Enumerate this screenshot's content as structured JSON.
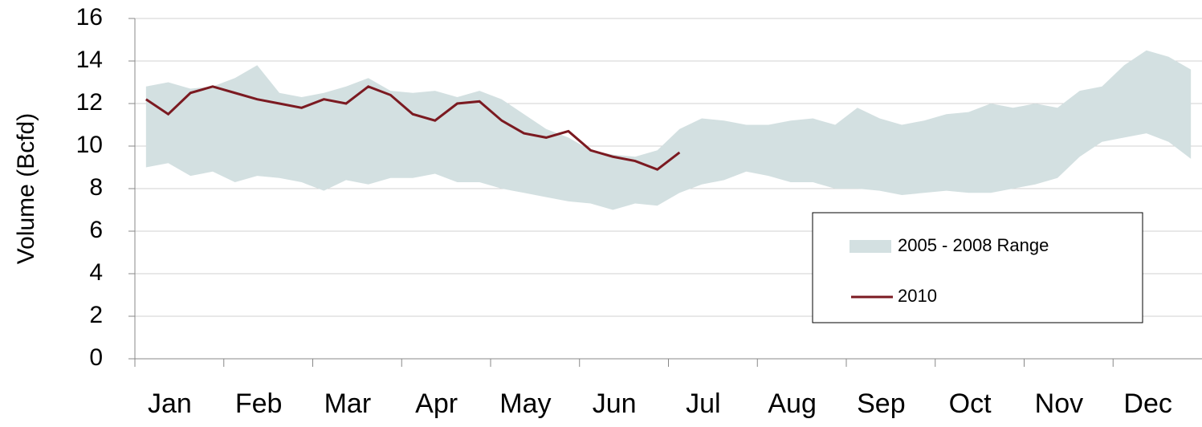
{
  "chart_data": {
    "type": "line",
    "y_label": "Volume (Bcfd)",
    "categories": [
      "Jan",
      null,
      null,
      null,
      "Feb",
      null,
      null,
      null,
      "Mar",
      null,
      null,
      null,
      "Apr",
      null,
      null,
      null,
      "May",
      null,
      null,
      null,
      "Jun",
      null,
      null,
      null,
      "Jul",
      null,
      null,
      null,
      "Aug",
      null,
      null,
      null,
      "Sep",
      null,
      null,
      null,
      "Oct",
      null,
      null,
      null,
      "Nov",
      null,
      null,
      null,
      "Dec",
      null,
      null,
      null
    ],
    "series": [
      {
        "name": "2005 - 2008 Range",
        "kind": "range",
        "color": "#d3e0e1",
        "low": [
          9.0,
          9.2,
          8.6,
          8.8,
          8.3,
          8.6,
          8.5,
          8.3,
          7.9,
          8.4,
          8.2,
          8.5,
          8.5,
          8.7,
          8.3,
          8.3,
          8.0,
          7.8,
          7.6,
          7.4,
          7.3,
          7.0,
          7.3,
          7.2,
          7.8,
          8.2,
          8.4,
          8.8,
          8.6,
          8.3,
          8.3,
          8.0,
          8.0,
          7.9,
          7.7,
          7.8,
          7.9,
          7.8,
          7.8,
          8.0,
          8.2,
          8.5,
          9.5,
          10.2,
          10.4,
          10.6,
          10.2,
          9.4
        ],
        "values": [
          12.8,
          13.0,
          12.7,
          12.8,
          13.2,
          13.8,
          12.5,
          12.3,
          12.5,
          12.8,
          13.2,
          12.6,
          12.5,
          12.6,
          12.3,
          12.6,
          12.2,
          11.5,
          10.8,
          10.4,
          9.8,
          9.6,
          9.5,
          9.8,
          10.8,
          11.3,
          11.2,
          11.0,
          11.0,
          11.2,
          11.3,
          11.0,
          11.8,
          11.3,
          11.0,
          11.2,
          11.5,
          11.6,
          12.0,
          11.8,
          12.0,
          11.8,
          12.6,
          12.8,
          13.8,
          14.5,
          14.2,
          13.6
        ]
      },
      {
        "name": "2010",
        "kind": "line",
        "color": "#7b1a21",
        "values": [
          12.2,
          11.5,
          12.5,
          12.8,
          12.5,
          12.2,
          12.0,
          11.8,
          12.2,
          12.0,
          12.8,
          12.4,
          11.5,
          11.2,
          12.0,
          12.1,
          11.2,
          10.6,
          10.4,
          10.7,
          9.8,
          9.5,
          9.3,
          8.9,
          9.7,
          null,
          null,
          null,
          null,
          null,
          null,
          null,
          null,
          null,
          null,
          null,
          null,
          null,
          null,
          null,
          null,
          null,
          null,
          null,
          null,
          null,
          null,
          null
        ]
      }
    ],
    "ylim": [
      0,
      16
    ],
    "yticks": [
      0,
      2,
      4,
      6,
      8,
      10,
      12,
      14,
      16
    ],
    "grid": true,
    "legend": "lower-right"
  }
}
